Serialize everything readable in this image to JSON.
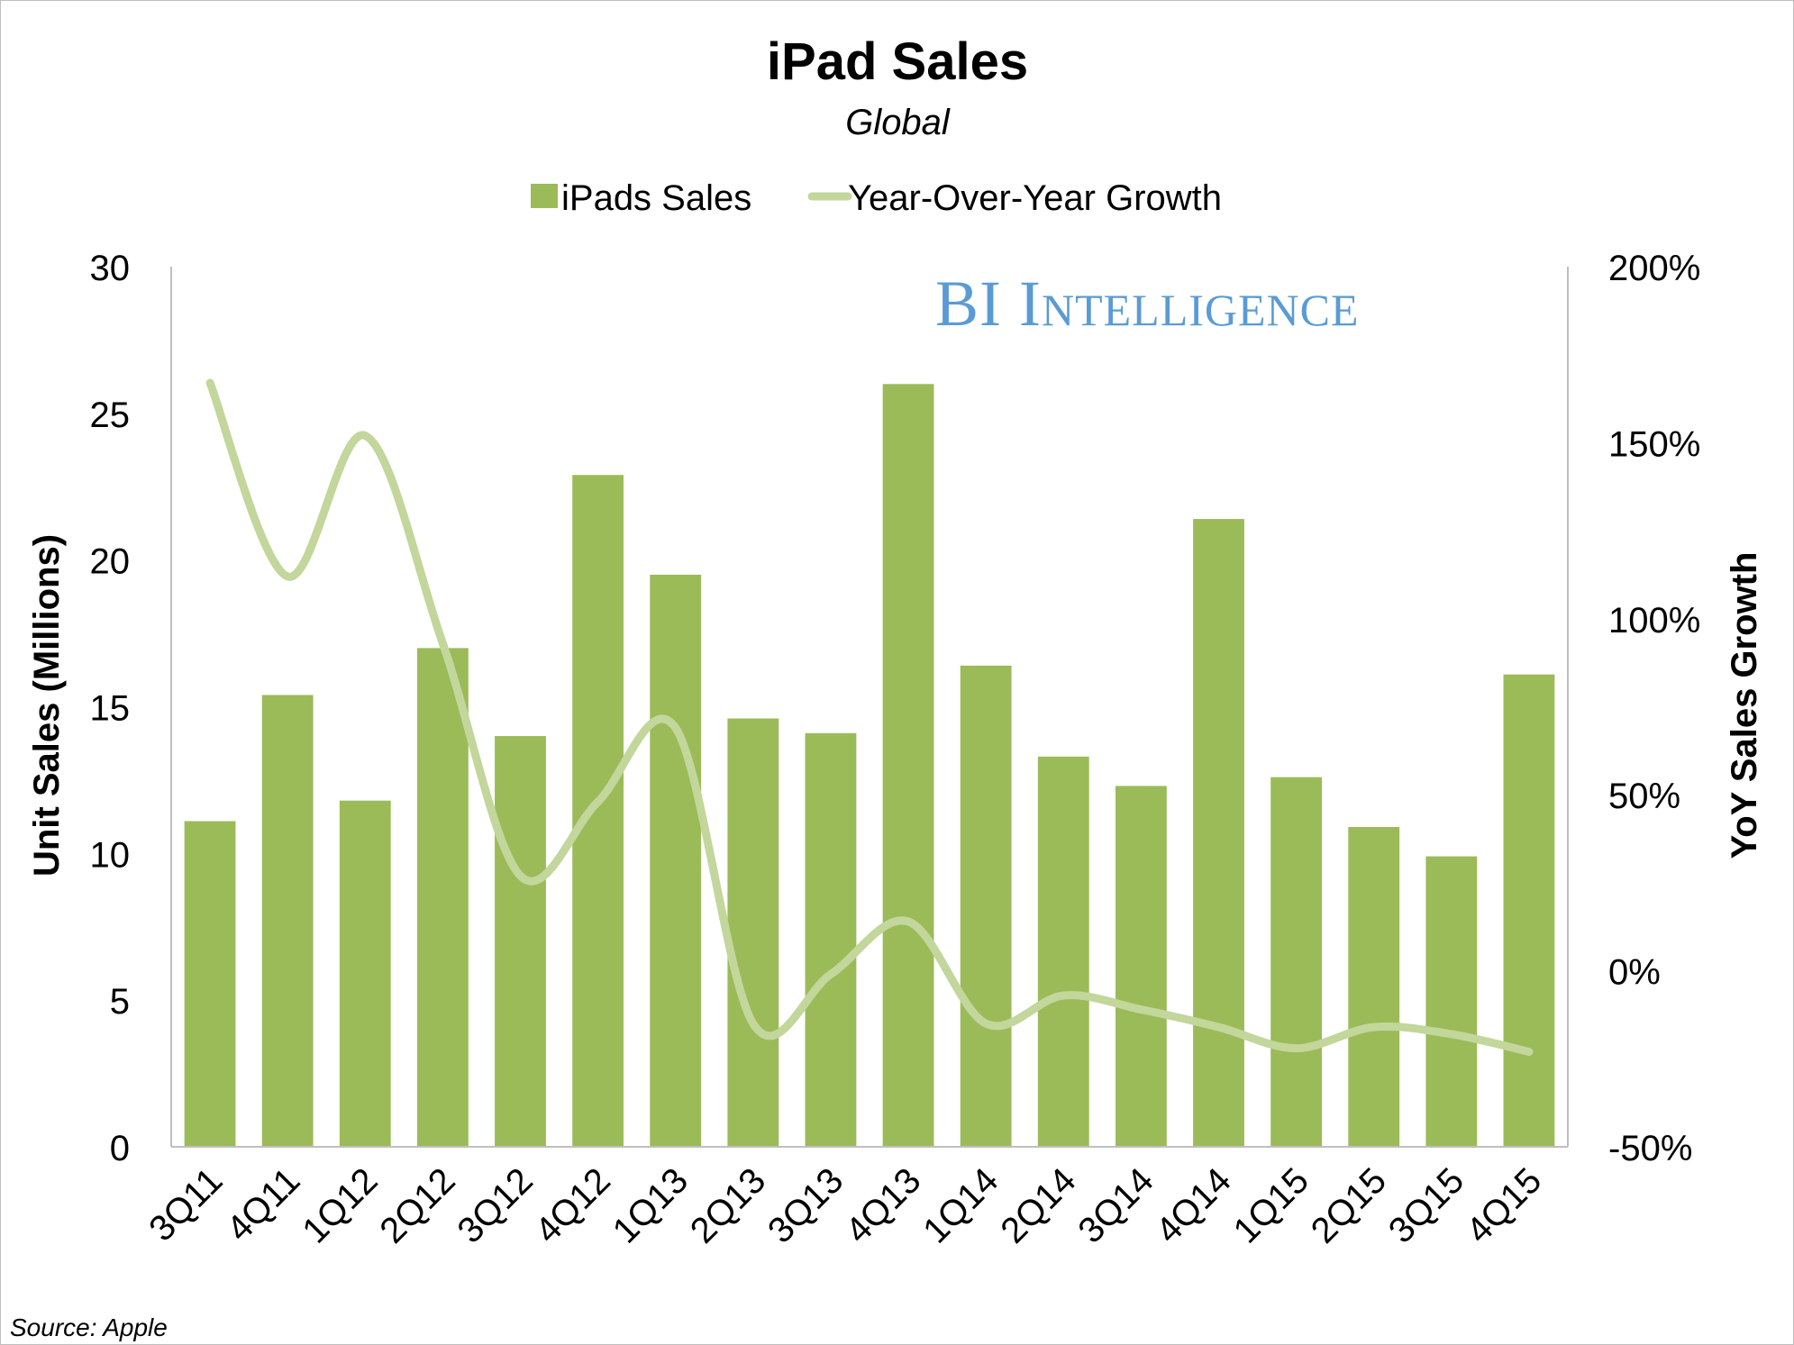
{
  "chart_data": {
    "type": "bar",
    "title": "iPad Sales",
    "subtitle": "Global",
    "watermark": "BI Intelligence",
    "source": "Source: Apple",
    "categories": [
      "3Q11",
      "4Q11",
      "1Q12",
      "2Q12",
      "3Q12",
      "4Q12",
      "1Q13",
      "2Q13",
      "3Q13",
      "4Q13",
      "1Q14",
      "2Q14",
      "3Q14",
      "4Q14",
      "1Q15",
      "2Q15",
      "3Q15",
      "4Q15"
    ],
    "series": [
      {
        "name": "iPads Sales",
        "type": "bar",
        "axis": "left",
        "values": [
          11.1,
          15.4,
          11.8,
          17.0,
          14.0,
          22.9,
          19.5,
          14.6,
          14.1,
          26.0,
          16.4,
          13.3,
          12.3,
          21.4,
          12.6,
          10.9,
          9.9,
          16.1
        ]
      },
      {
        "name": "Year-Over-Year Growth",
        "type": "line",
        "axis": "right",
        "values": [
          167,
          112,
          152,
          93,
          27,
          48,
          69,
          -15,
          -1,
          14,
          -15,
          -7,
          -11,
          -16,
          -22,
          -16,
          -18,
          -23
        ]
      }
    ],
    "ylabel": "Unit Sales (Millions)",
    "y2label": "YoY Sales Growth",
    "xlabel": "",
    "ylim": [
      0,
      30
    ],
    "y2lim": [
      -50,
      200
    ],
    "yticks": [
      "0",
      "5",
      "10",
      "15",
      "20",
      "25",
      "30"
    ],
    "y2ticks": [
      "-50%",
      "0%",
      "50%",
      "100%",
      "150%",
      "200%"
    ],
    "legend_position": "top-center",
    "grid": false,
    "colors": {
      "bar": "#9bbb59",
      "line": "#c3d69b",
      "watermark": "#5b9bd5",
      "axis": "#bfbfbf",
      "text": "#000000"
    }
  }
}
